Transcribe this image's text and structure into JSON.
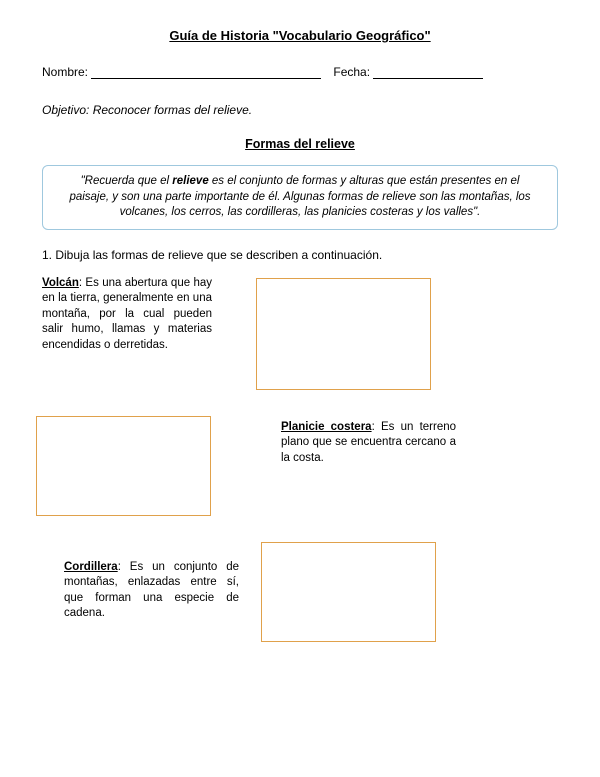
{
  "title": "Guía de Historia \"Vocabulario Geográfico\"",
  "name_label": "Nombre: ",
  "date_label": "Fecha: ",
  "objective": "Objetivo: Reconocer formas del relieve.",
  "subtitle": "Formas del relieve",
  "info_pre": "\"Recuerda que el ",
  "info_strong": "relieve",
  "info_post": " es el conjunto de formas y alturas que están presentes en el paisaje, y son una parte importante de él. Algunas formas de relieve son las montañas, los volcanes, los cerros, las cordilleras, las planicies costeras y los valles\".",
  "instruction": "1. Dibuja las formas de relieve que se describen a continuación.",
  "items": [
    {
      "term": "Volcán",
      "sep": ":  ",
      "def": "Es una abertura que hay en la tierra, generalmente en una montaña, por la cual pueden salir humo, llamas y materias encendidas o derretidas."
    },
    {
      "term": "Planicie costera",
      "sep": ": ",
      "def": "Es un terreno plano que se encuentra cercano a la costa."
    },
    {
      "term": "Cordillera",
      "sep": ": ",
      "def": "Es un conjunto de montañas, enlazadas entre sí, que forman una especie de cadena."
    }
  ],
  "colors": {
    "box_border": "#e0a14b",
    "info_border": "#9fc8de",
    "text": "#000000",
    "background": "#ffffff"
  }
}
